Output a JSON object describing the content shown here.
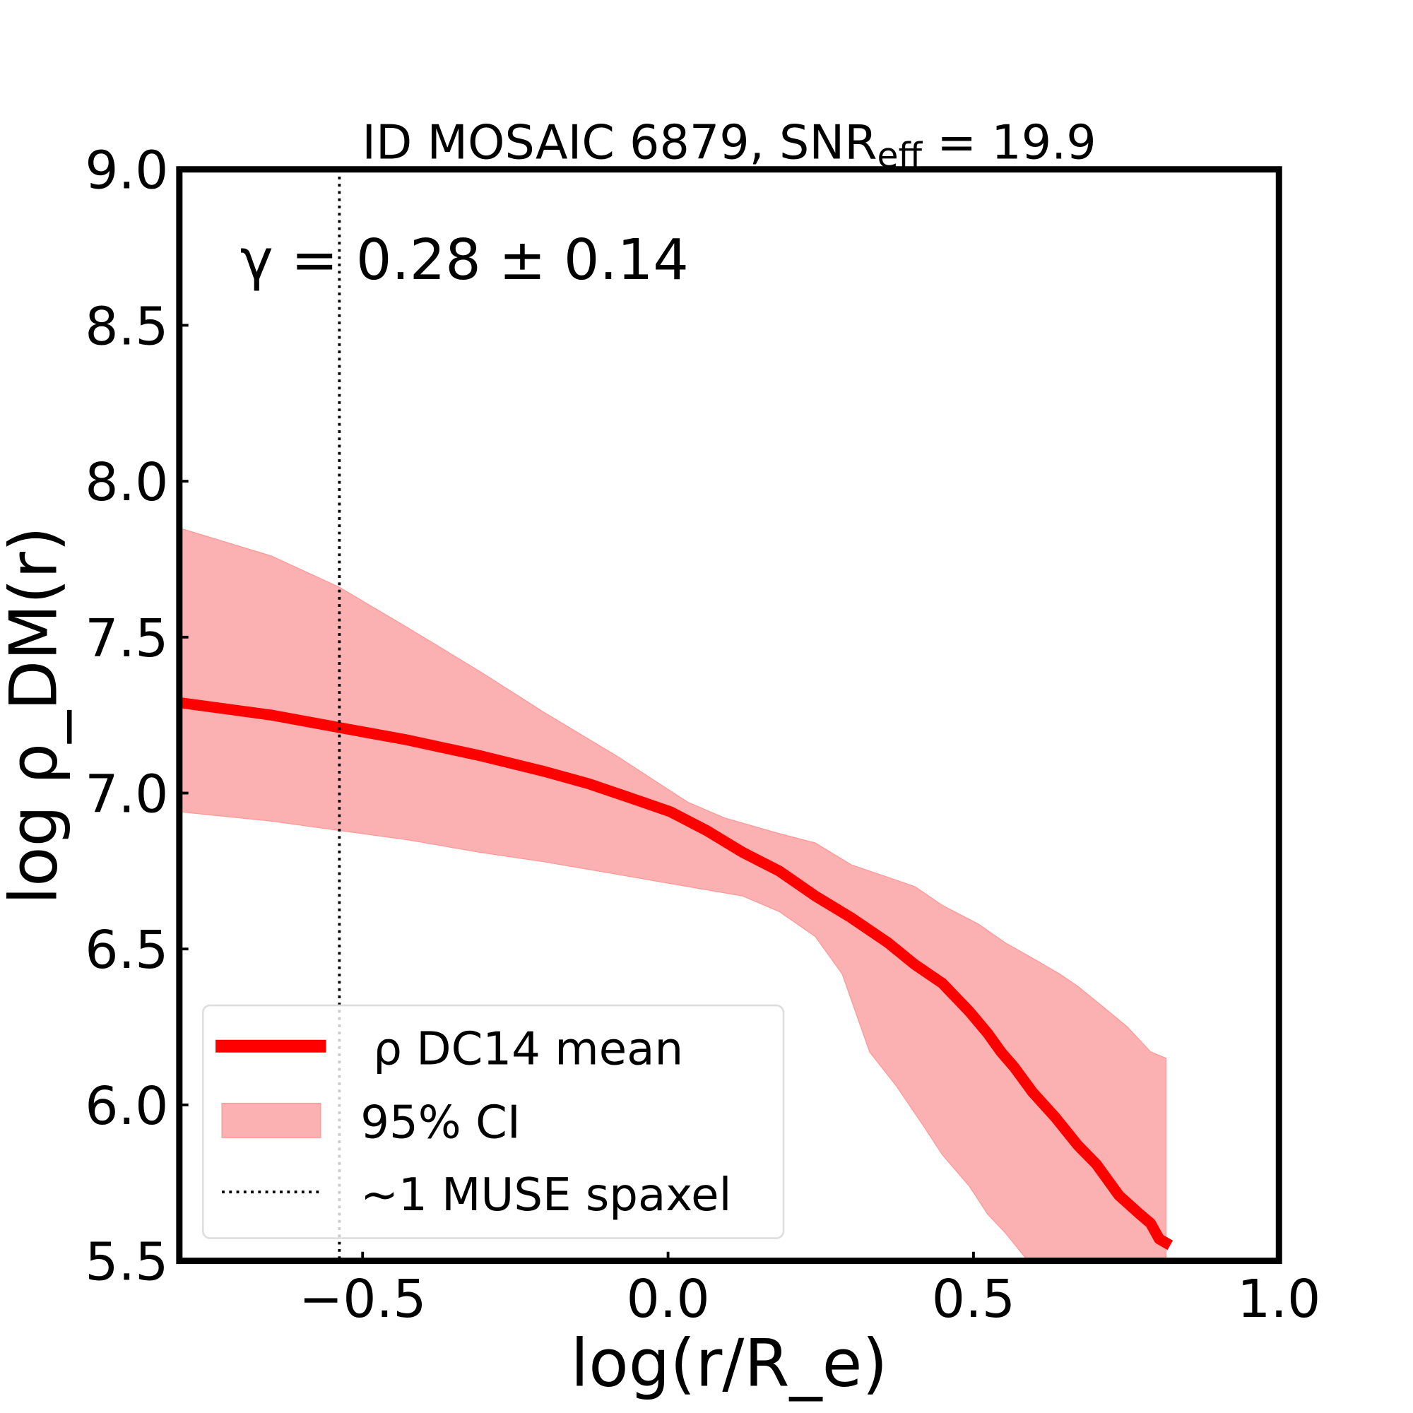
{
  "chart_data": {
    "type": "line",
    "title": "ID MOSAIC 6879, SNR",
    "title_sub": "eff",
    "title_tail": " = 19.9",
    "annotation": "γ = 0.28 ± 0.14",
    "xlabel": "log(r/R_e)",
    "ylabel": "log ρ_DM(r)",
    "xlim": [
      -0.8,
      1.0
    ],
    "ylim": [
      5.5,
      9.0
    ],
    "xticks": [
      -0.5,
      0.0,
      0.5,
      1.0
    ],
    "xtick_labels": [
      "−0.5",
      "0.0",
      "0.5",
      "1.0"
    ],
    "yticks": [
      5.5,
      6.0,
      6.5,
      7.0,
      7.5,
      8.0,
      8.5,
      9.0
    ],
    "ytick_labels": [
      "5.5",
      "6.0",
      "6.5",
      "7.0",
      "7.5",
      "8.0",
      "8.5",
      "9.0"
    ],
    "grid": false,
    "legend_position": "lower-left",
    "series": [
      {
        "name": "ρ DC14 mean",
        "color": "#ff0000",
        "x": [
          -0.8,
          -0.649,
          -0.538,
          -0.426,
          -0.308,
          -0.204,
          -0.13,
          -0.055,
          0.004,
          0.063,
          0.122,
          0.182,
          0.241,
          0.3,
          0.36,
          0.404,
          0.449,
          0.493,
          0.523,
          0.545,
          0.567,
          0.597,
          0.634,
          0.671,
          0.701,
          0.738,
          0.772,
          0.79,
          0.804,
          0.822
        ],
        "y": [
          7.29,
          7.25,
          7.21,
          7.17,
          7.12,
          7.07,
          7.03,
          6.98,
          6.94,
          6.88,
          6.81,
          6.75,
          6.67,
          6.6,
          6.52,
          6.45,
          6.39,
          6.3,
          6.23,
          6.17,
          6.12,
          6.04,
          5.96,
          5.87,
          5.81,
          5.71,
          5.65,
          5.62,
          5.57,
          5.55
        ]
      }
    ],
    "band": {
      "name": "95% CI",
      "color": "#fbb1b1",
      "upper": {
        "x": [
          -0.8,
          -0.649,
          -0.538,
          -0.426,
          -0.308,
          -0.204,
          -0.085,
          0.033,
          0.093,
          0.182,
          0.241,
          0.3,
          0.36,
          0.404,
          0.449,
          0.508,
          0.552,
          0.597,
          0.641,
          0.671,
          0.715,
          0.752,
          0.79,
          0.815
        ],
        "y": [
          7.85,
          7.76,
          7.66,
          7.53,
          7.39,
          7.26,
          7.12,
          6.97,
          6.92,
          6.87,
          6.84,
          6.77,
          6.73,
          6.7,
          6.64,
          6.58,
          6.52,
          6.47,
          6.42,
          6.38,
          6.31,
          6.25,
          6.17,
          6.15
        ]
      },
      "lower": {
        "x": [
          -0.8,
          -0.649,
          -0.538,
          -0.426,
          -0.308,
          -0.204,
          -0.085,
          0.033,
          0.122,
          0.182,
          0.241,
          0.285,
          0.33,
          0.374,
          0.419,
          0.449,
          0.493,
          0.523,
          0.552,
          0.589
        ],
        "y": [
          6.94,
          6.91,
          6.88,
          6.85,
          6.81,
          6.78,
          6.74,
          6.7,
          6.67,
          6.62,
          6.54,
          6.42,
          6.17,
          6.06,
          5.93,
          5.84,
          5.74,
          5.65,
          5.59,
          5.5
        ]
      },
      "end_x": 0.815
    },
    "vline": {
      "name": "~1 MUSE spaxel",
      "x": -0.538,
      "style": "dotted",
      "color": "#000000"
    },
    "legend": [
      "ρ DC14 mean",
      "95% CI",
      "~1 MUSE spaxel"
    ]
  }
}
